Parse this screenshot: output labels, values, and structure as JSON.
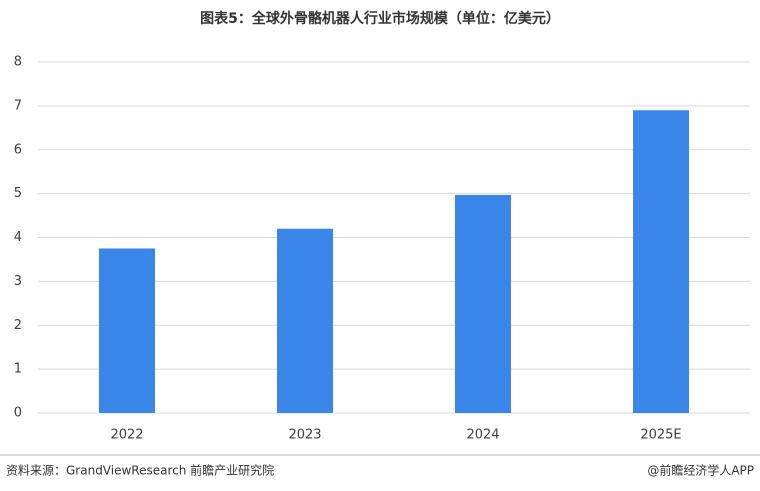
{
  "chart_data": {
    "type": "bar",
    "title": "图表5：全球外骨骼机器人行业市场规模（单位：亿美元）",
    "categories": [
      "2022",
      "2023",
      "2024",
      "2025E"
    ],
    "values": [
      3.75,
      4.2,
      4.97,
      6.9
    ],
    "color": "#3a86e8",
    "ylim": [
      0,
      8
    ],
    "yticks": [
      0,
      1,
      2,
      3,
      4,
      5,
      6,
      7,
      8
    ],
    "grid": true,
    "source": "资料来源：GrandViewResearch  前瞻产业研究院",
    "credit": "@前瞻经济学人APP"
  }
}
